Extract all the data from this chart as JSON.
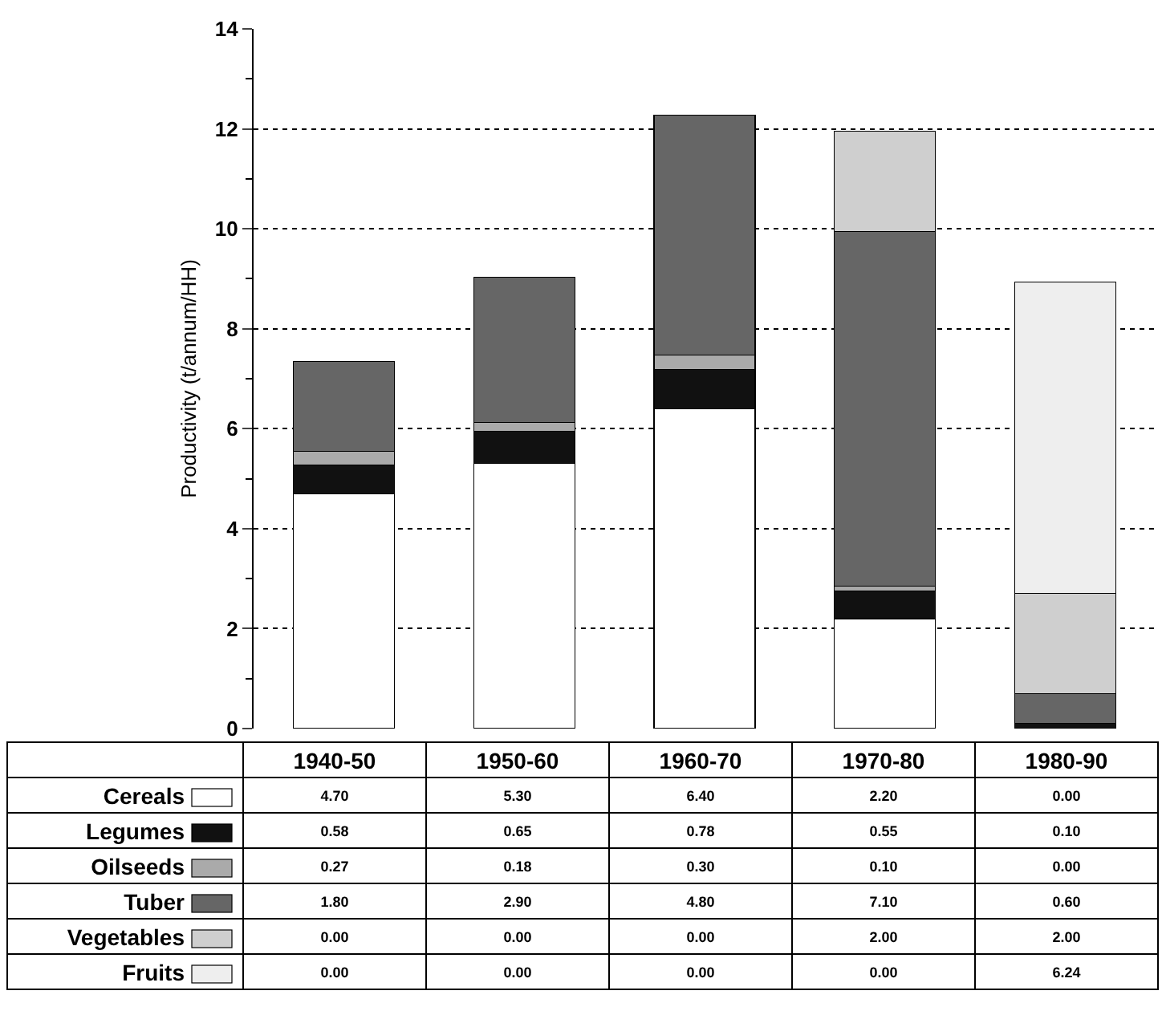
{
  "chart_data": {
    "type": "bar",
    "stacked": true,
    "ylabel": "Productivity (t/annum/HH)",
    "categories": [
      "1940-50",
      "1950-60",
      "1960-70",
      "1970-80",
      "1980-90"
    ],
    "ylim": [
      0,
      14
    ],
    "yticks": [
      0,
      2,
      4,
      6,
      8,
      10,
      12,
      14
    ],
    "grid": "y",
    "legend": "bottom",
    "series": [
      {
        "name": "Cereals",
        "color": "#ffffff",
        "values": [
          4.7,
          5.3,
          6.4,
          2.2,
          0.0
        ],
        "value_labels": [
          "4.70",
          "5.30",
          "6.40",
          "2.20",
          "0.00"
        ]
      },
      {
        "name": "Legumes",
        "color": "#111111",
        "values": [
          0.58,
          0.65,
          0.78,
          0.55,
          0.1
        ],
        "value_labels": [
          "0.58",
          "0.65",
          "0.78",
          "0.55",
          "0.10"
        ]
      },
      {
        "name": "Oilseeds",
        "color": "#aaaaaa",
        "values": [
          0.27,
          0.18,
          0.3,
          0.1,
          0.0
        ],
        "value_labels": [
          "0.27",
          "0.18",
          "0.30",
          "0.10",
          "0.00"
        ]
      },
      {
        "name": "Tuber",
        "color": "#666666",
        "values": [
          1.8,
          2.9,
          4.8,
          7.1,
          0.6
        ],
        "value_labels": [
          "1.80",
          "2.90",
          "4.80",
          "7.10",
          "0.60"
        ]
      },
      {
        "name": "Vegetables",
        "color": "#cfcfcf",
        "values": [
          0.0,
          0.0,
          0.0,
          2.0,
          2.0
        ],
        "value_labels": [
          "0.00",
          "0.00",
          "0.00",
          "2.00",
          "2.00"
        ]
      },
      {
        "name": "Fruits",
        "color": "#eeeeee",
        "values": [
          0.0,
          0.0,
          0.0,
          0.0,
          6.24
        ],
        "value_labels": [
          "0.00",
          "0.00",
          "0.00",
          "0.00",
          "6.24"
        ]
      }
    ]
  }
}
